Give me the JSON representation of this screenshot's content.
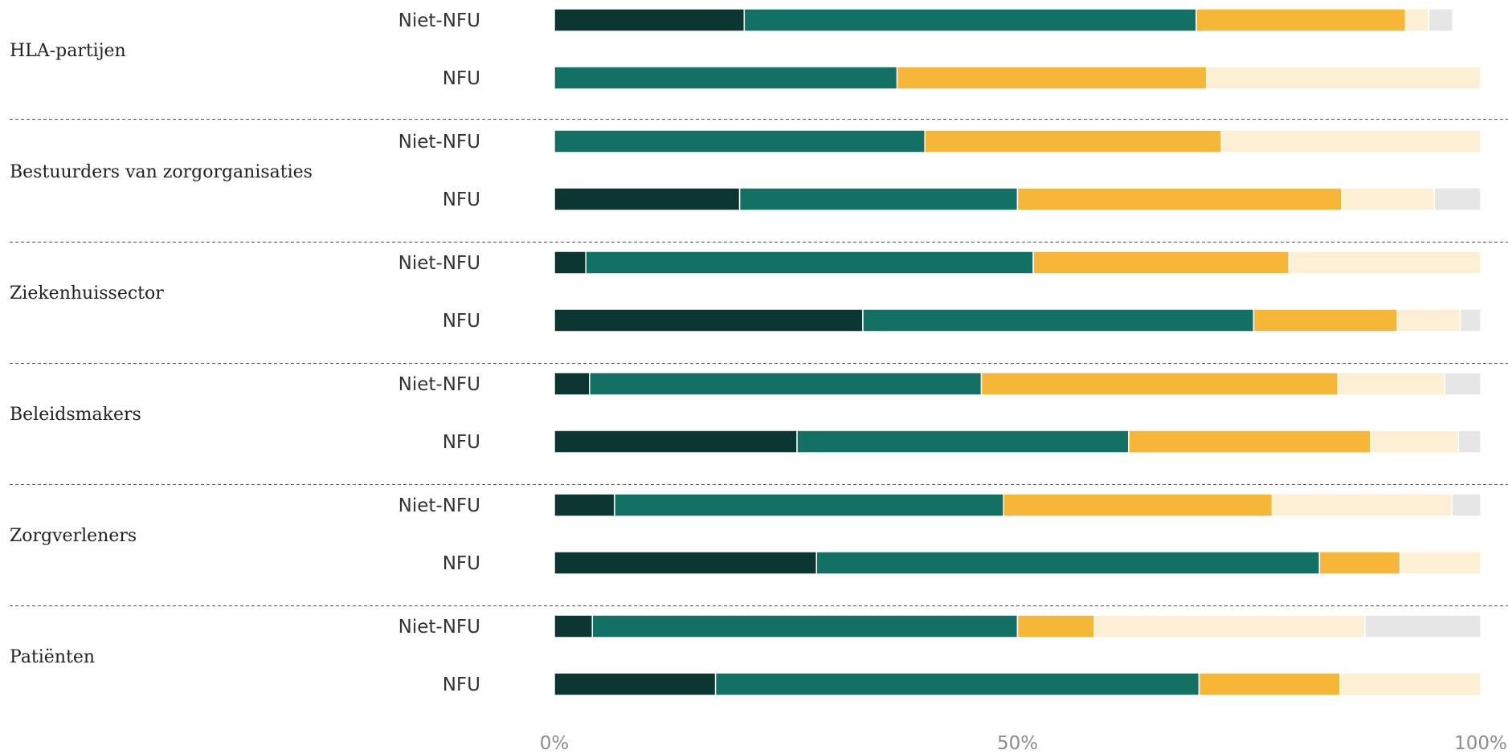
{
  "chart_data": {
    "type": "bar",
    "orientation": "horizontal",
    "stacked": true,
    "normalized": true,
    "xlim": [
      0,
      100
    ],
    "x_ticks": [
      "0%",
      "50%",
      "100%"
    ],
    "grid": false,
    "legend": "none",
    "segment_colors": [
      "#0b3631",
      "#137064",
      "#f6b637",
      "#fdefd3",
      "#e6e6e6"
    ],
    "groups": [
      {
        "name": "HLA-partijen",
        "rows": [
          {
            "label": "Niet-NFU",
            "values": [
              20.5,
              48.8,
              22.6,
              2.5,
              2.6
            ]
          },
          {
            "label": "NFU",
            "values": [
              0,
              37.0,
              33.4,
              29.6,
              0
            ]
          }
        ]
      },
      {
        "name": "Bestuurders van zorgorganisaties",
        "rows": [
          {
            "label": "Niet-NFU",
            "values": [
              0,
              40.0,
              32.0,
              28.0,
              0
            ]
          },
          {
            "label": "NFU",
            "values": [
              20.0,
              30.0,
              35.0,
              10.0,
              5.0
            ]
          }
        ]
      },
      {
        "name": "Ziekenhuissector",
        "rows": [
          {
            "label": "Niet-NFU",
            "values": [
              3.4,
              48.3,
              27.6,
              20.7,
              0
            ]
          },
          {
            "label": "NFU",
            "values": [
              33.3,
              42.2,
              15.5,
              6.8,
              2.2
            ]
          }
        ]
      },
      {
        "name": "Beleidsmakers",
        "rows": [
          {
            "label": "Niet-NFU",
            "values": [
              3.8,
              42.3,
              38.5,
              11.5,
              3.9
            ]
          },
          {
            "label": "NFU",
            "values": [
              26.2,
              35.8,
              26.1,
              9.5,
              2.4
            ]
          }
        ]
      },
      {
        "name": "Zorgverleners",
        "rows": [
          {
            "label": "Niet-NFU",
            "values": [
              6.5,
              42.0,
              29.0,
              19.4,
              3.1
            ]
          },
          {
            "label": "NFU",
            "values": [
              28.3,
              54.3,
              8.7,
              8.7,
              0
            ]
          }
        ]
      },
      {
        "name": "Patiënten",
        "rows": [
          {
            "label": "Niet-NFU",
            "values": [
              4.1,
              45.9,
              8.3,
              29.2,
              12.5
            ]
          },
          {
            "label": "NFU",
            "values": [
              17.4,
              52.2,
              15.2,
              15.2,
              0
            ]
          }
        ]
      }
    ]
  }
}
